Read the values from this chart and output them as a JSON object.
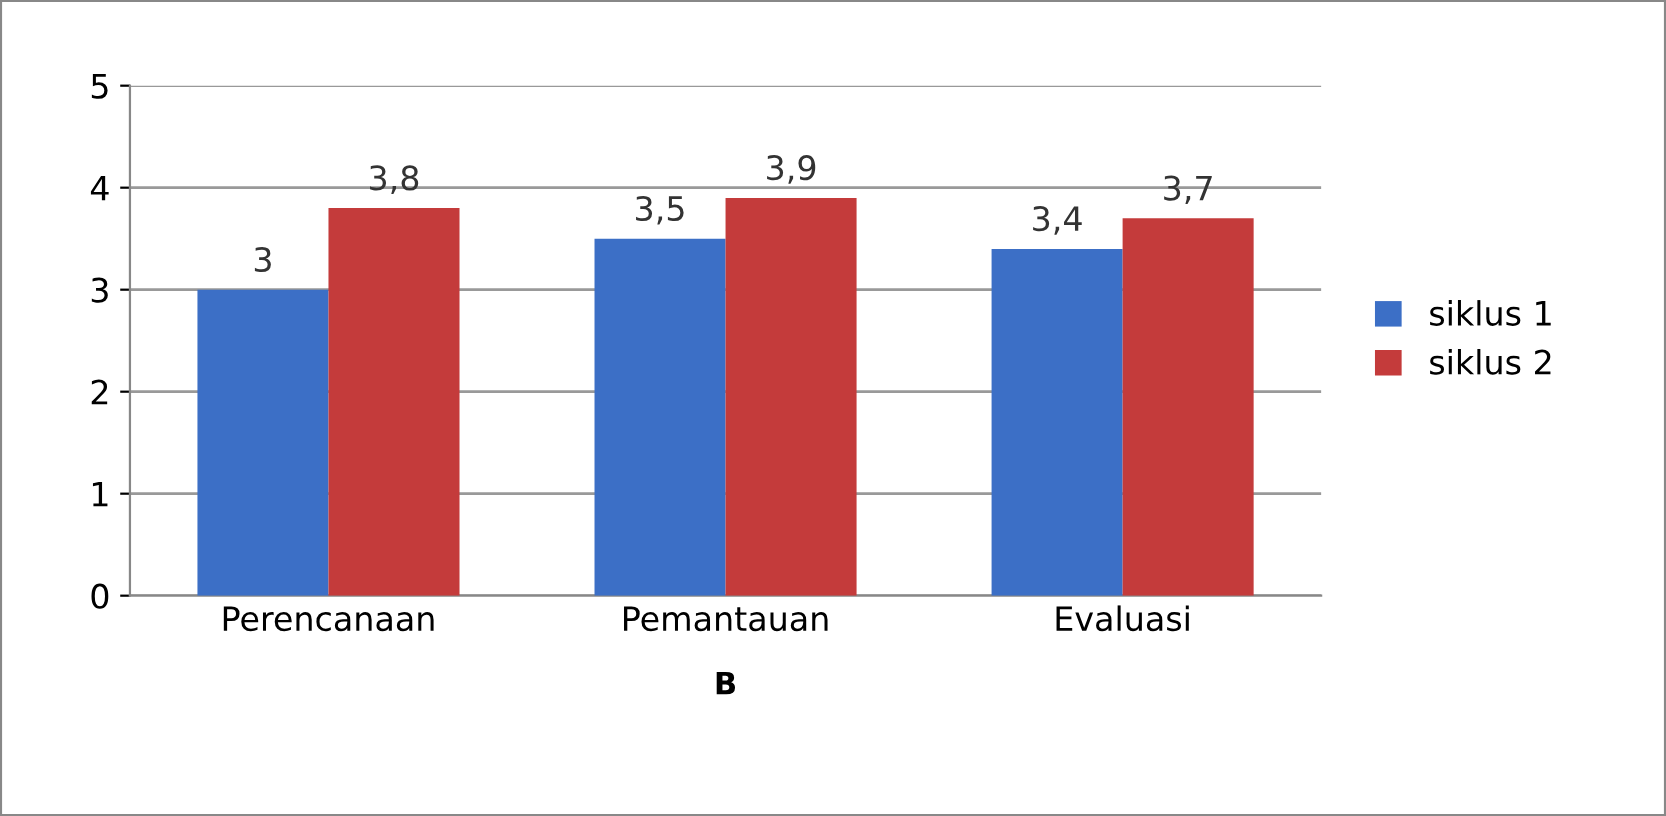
{
  "chart_data": {
    "type": "bar",
    "xlabel": "B",
    "categories": [
      "Perencanaan",
      "Pemantauan",
      "Evaluasi"
    ],
    "series": [
      {
        "name": "siklus 1",
        "color": "#3c6fc6",
        "values": [
          3,
          3.5,
          3.4
        ],
        "value_labels": [
          "3",
          "3,5",
          "3,4"
        ]
      },
      {
        "name": "siklus 2",
        "color": "#c43b3b",
        "values": [
          3.8,
          3.9,
          3.7
        ],
        "value_labels": [
          "3,8",
          "3,9",
          "3,7"
        ]
      }
    ],
    "ylim": [
      0,
      5
    ],
    "yticks": [
      0,
      1,
      2,
      3,
      4,
      5
    ],
    "grid": "y",
    "legend": "right"
  }
}
